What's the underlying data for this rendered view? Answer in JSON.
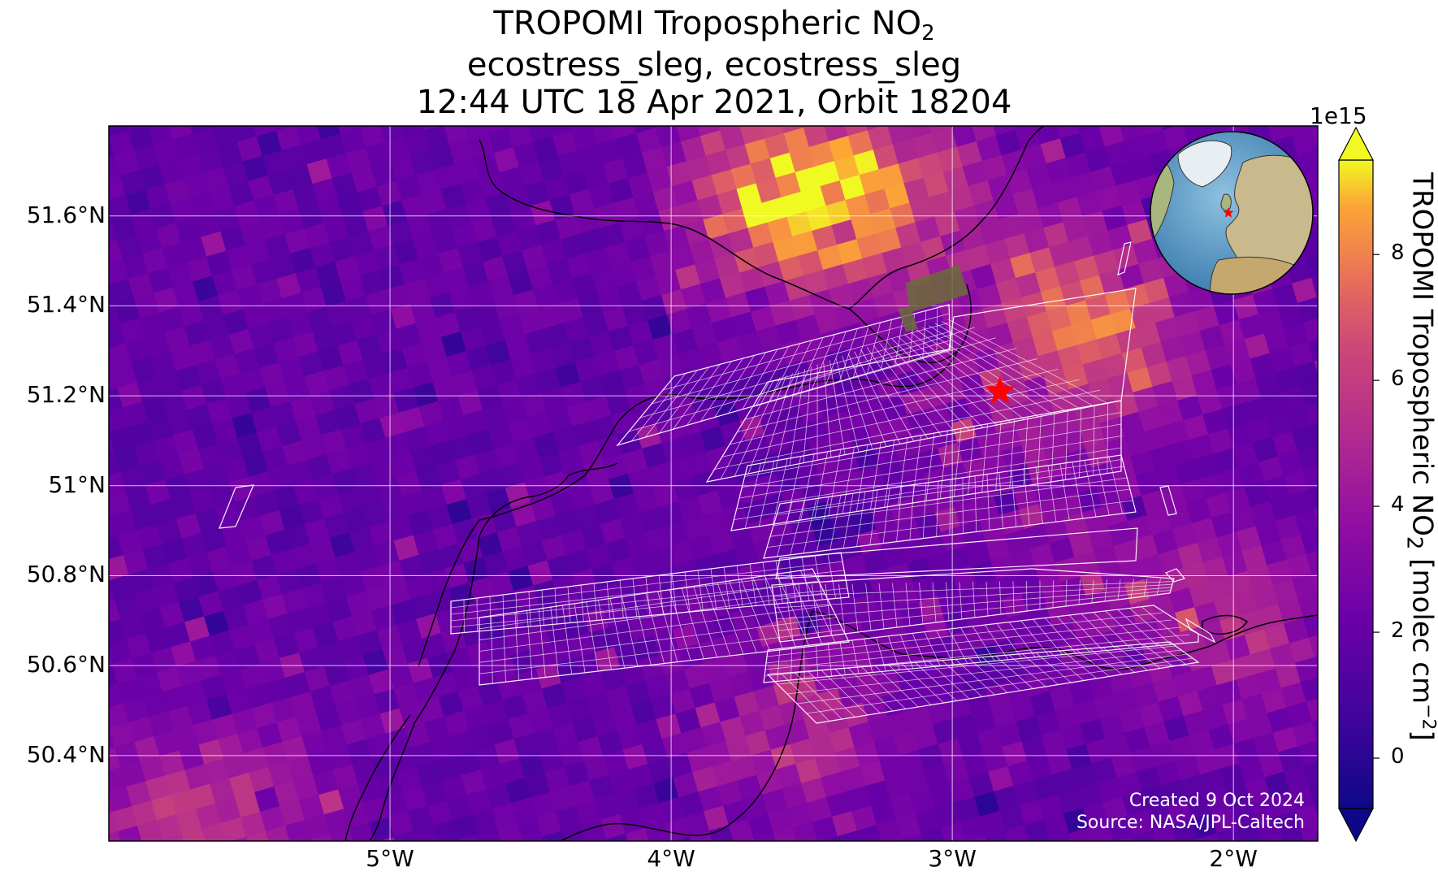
{
  "title": {
    "line1_prefix": "TROPOMI Tropospheric NO",
    "line1_sub": "2",
    "line2": "ecostress_sleg, ecostress_sleg",
    "line3": "12:44 UTC 18 Apr 2021, Orbit 18204"
  },
  "map": {
    "extent": {
      "lon_min": -6.0,
      "lon_max": -1.7,
      "lat_min": 50.21,
      "lat_max": 51.8
    },
    "lat_ticks": [
      {
        "value": 51.6,
        "label": "51.6°N"
      },
      {
        "value": 51.4,
        "label": "51.4°N"
      },
      {
        "value": 51.2,
        "label": "51.2°N"
      },
      {
        "value": 51.0,
        "label": "51°N"
      },
      {
        "value": 50.8,
        "label": "50.8°N"
      },
      {
        "value": 50.6,
        "label": "50.6°N"
      },
      {
        "value": 50.4,
        "label": "50.4°N"
      }
    ],
    "lon_ticks": [
      {
        "value": -5,
        "label": "5°W"
      },
      {
        "value": -4,
        "label": "4°W"
      },
      {
        "value": -3,
        "label": "3°W"
      },
      {
        "value": -2,
        "label": "2°W"
      }
    ],
    "gridlines": true,
    "target_marker": {
      "lon": -2.83,
      "lat": 51.21,
      "color": "#ff0000",
      "shape": "star"
    },
    "colors": {
      "coastline": "#000000",
      "footprint_grid": "#ffffff",
      "gridline": "#ffffff"
    }
  },
  "colorbar": {
    "label_prefix": "TROPOMI Tropospheric NO",
    "label_sub": "2",
    "label_suffix": " [molec cm",
    "label_sup": "−2",
    "label_end": "]",
    "exponent_label": "1e15",
    "range": [
      -0.8,
      9.5
    ],
    "extend": "both",
    "colormap": "plasma",
    "ticks": [
      {
        "value": 0,
        "label": "0"
      },
      {
        "value": 2,
        "label": "2"
      },
      {
        "value": 4,
        "label": "4"
      },
      {
        "value": 6,
        "label": "6"
      },
      {
        "value": 8,
        "label": "8"
      }
    ]
  },
  "inset": {
    "type": "globe",
    "marker_color": "#ff0000"
  },
  "credits": {
    "created": "Created 9 Oct 2024",
    "source": "Source: NASA/JPL-Caltech"
  }
}
